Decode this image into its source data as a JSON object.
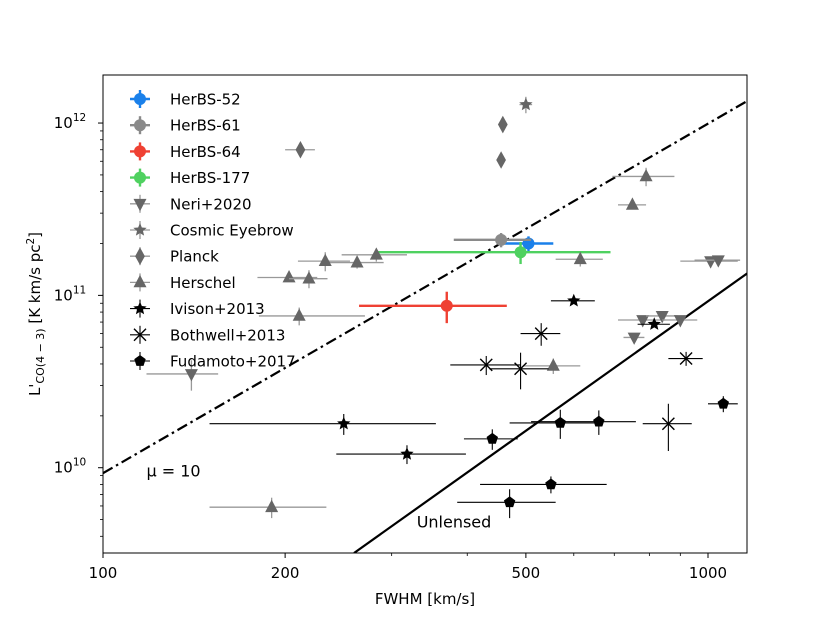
{
  "chart_data": {
    "type": "scatter",
    "xlabel": "FWHM [km/s]",
    "ylabel_main": "L'",
    "ylabel_sub": "CO(4 − 3)",
    "ylabel_unit": " [K km/s pc",
    "ylabel_unit_sup": "2",
    "ylabel_unit_end": "]",
    "x_scale": "log",
    "y_scale": "log",
    "xlim": [
      100,
      1160
    ],
    "ylim": [
      3200000000.0,
      1900000000000.0
    ],
    "x_ticks": [
      {
        "value": 100,
        "label": "100"
      },
      {
        "value": 200,
        "label": "200"
      },
      {
        "value": 500,
        "label": "500"
      },
      {
        "value": 1000,
        "label": "1000"
      }
    ],
    "y_ticks": [
      {
        "value": 10000000000.0,
        "base": "10",
        "exp": "10"
      },
      {
        "value": 100000000000.0,
        "base": "10",
        "exp": "11"
      },
      {
        "value": 1000000000000.0,
        "base": "10",
        "exp": "12"
      }
    ],
    "grid": false,
    "legend_position": "upper-left",
    "lines": [
      {
        "name": "μ = 10",
        "style": "dashdot",
        "color": "#000000",
        "x": [
          100,
          1160
        ],
        "y": [
          9300000000.0,
          1340000000000.0
        ]
      },
      {
        "name": "Unlensed",
        "style": "solid",
        "color": "#000000",
        "x": [
          260,
          1160
        ],
        "y": [
          3200000000.0,
          134000000000.0
        ]
      }
    ],
    "annotations": [
      {
        "text": "μ = 10",
        "x": 118,
        "y": 8900000000.0
      },
      {
        "text": "Unlensed",
        "x": 330,
        "y": 4500000000.0
      }
    ],
    "series": [
      {
        "name": "HerBS-52",
        "marker": "circle",
        "color": "#1a80ea",
        "size": 6,
        "ecolor": "#1a80ea",
        "ewidth": 2.4,
        "points": [
          {
            "x": 505,
            "y": 200000000000.0,
            "xerr": [
              50,
              50
            ],
            "yerr": [
              20000000000.0,
              20000000000.0
            ]
          }
        ]
      },
      {
        "name": "HerBS-61",
        "marker": "circle",
        "color": "#8a8a8a",
        "size": 6,
        "ecolor": "#8a8a8a",
        "ewidth": 2.4,
        "points": [
          {
            "x": 455,
            "y": 210000000000.0,
            "xerr": [
              75,
              55
            ],
            "yerr": [
              20000000000.0,
              20000000000.0
            ]
          }
        ]
      },
      {
        "name": "HerBS-64",
        "marker": "circle",
        "color": "#ef4133",
        "size": 6,
        "ecolor": "#ef4133",
        "ewidth": 2.4,
        "points": [
          {
            "x": 370,
            "y": 87000000000.0,
            "xerr": [
              105,
              95
            ],
            "yerr": [
              18000000000.0,
              18000000000.0
            ]
          }
        ]
      },
      {
        "name": "HerBS-177",
        "marker": "circle",
        "color": "#4fd160",
        "size": 6,
        "ecolor": "#4fd160",
        "ewidth": 2.4,
        "points": [
          {
            "x": 490,
            "y": 178000000000.0,
            "xerr": [
              205,
              200
            ],
            "yerr": [
              26000000000.0,
              26000000000.0
            ]
          }
        ]
      },
      {
        "name": "Neri+2020",
        "marker": "triangle-down",
        "color": "#666666",
        "size": 6.5,
        "ecolor": "#999999",
        "ewidth": 1.3,
        "points": [
          {
            "x": 1010,
            "y": 158000000000.0,
            "xerr": [
              110,
              110
            ],
            "yerr": [
              0,
              0
            ]
          },
          {
            "x": 1040,
            "y": 160000000000.0,
            "xerr": [
              90,
              90
            ],
            "yerr": [
              0,
              0
            ]
          },
          {
            "x": 780,
            "y": 72000000000.0,
            "xerr": [
              70,
              70
            ],
            "yerr": [
              0,
              0
            ]
          },
          {
            "x": 840,
            "y": 76000000000.0,
            "xerr": [
              50,
              50
            ],
            "yerr": [
              0,
              0
            ]
          },
          {
            "x": 900,
            "y": 72000000000.0,
            "xerr": [
              60,
              60
            ],
            "yerr": [
              0,
              0
            ]
          },
          {
            "x": 755,
            "y": 57000000000.0,
            "xerr": [
              30,
              30
            ],
            "yerr": [
              0,
              0
            ]
          },
          {
            "x": 140,
            "y": 35000000000.0,
            "xerr": [
              22,
              15
            ],
            "yerr": [
              7000000000.0,
              7000000000.0
            ]
          }
        ]
      },
      {
        "name": "Cosmic Eyebrow",
        "marker": "star-gray",
        "color": "#666666",
        "size": 7,
        "ecolor": "#999999",
        "ewidth": 1.3,
        "points": [
          {
            "x": 500,
            "y": 1280000000000.0,
            "xerr": [
              12,
              12
            ],
            "yerr": [
              140000000000.0,
              140000000000.0
            ]
          }
        ]
      },
      {
        "name": "Planck",
        "marker": "diamond",
        "color": "#666666",
        "size": 6.5,
        "ecolor": "#999999",
        "ewidth": 1.3,
        "points": [
          {
            "x": 212,
            "y": 700000000000.0,
            "xerr": [
              12,
              12
            ],
            "yerr": [
              0,
              0
            ]
          },
          {
            "x": 458,
            "y": 980000000000.0,
            "xerr": [
              6,
              6
            ],
            "yerr": [
              0,
              0
            ]
          },
          {
            "x": 455,
            "y": 610000000000.0,
            "xerr": [
              6,
              6
            ],
            "yerr": [
              0,
              0
            ]
          }
        ]
      },
      {
        "name": "Herschel",
        "marker": "triangle-up",
        "color": "#666666",
        "size": 6.5,
        "ecolor": "#999999",
        "ewidth": 1.3,
        "points": [
          {
            "x": 790,
            "y": 490000000000.0,
            "xerr": [
              95,
              90
            ],
            "yerr": [
              60000000000.0,
              60000000000.0
            ]
          },
          {
            "x": 750,
            "y": 335000000000.0,
            "xerr": [
              40,
              40
            ],
            "yerr": [
              0,
              0
            ]
          },
          {
            "x": 615,
            "y": 162000000000.0,
            "xerr": [
              55,
              55
            ],
            "yerr": [
              15000000000.0,
              15000000000.0
            ]
          },
          {
            "x": 283,
            "y": 172000000000.0,
            "xerr": [
              35,
              35
            ],
            "yerr": [
              15000000000.0,
              15000000000.0
            ]
          },
          {
            "x": 263,
            "y": 155000000000.0,
            "xerr": [
              28,
              28
            ],
            "yerr": [
              12000000000.0,
              12000000000.0
            ]
          },
          {
            "x": 233,
            "y": 158000000000.0,
            "xerr": [
              23,
              23
            ],
            "yerr": [
              20000000000.0,
              20000000000.0
            ]
          },
          {
            "x": 203,
            "y": 127000000000.0,
            "xerr": [
              23,
              23
            ],
            "yerr": [
              0,
              0
            ]
          },
          {
            "x": 219,
            "y": 125000000000.0,
            "xerr": [
              16,
              16
            ],
            "yerr": [
              15000000000.0,
              15000000000.0
            ]
          },
          {
            "x": 211,
            "y": 76000000000.0,
            "xerr": [
              30,
              60
            ],
            "yerr": [
              9000000000.0,
              9000000000.0
            ]
          },
          {
            "x": 555,
            "y": 39000000000.0,
            "xerr": [
              60,
              60
            ],
            "yerr": [
              4000000000.0,
              4000000000.0
            ]
          },
          {
            "x": 190,
            "y": 5900000000.0,
            "xerr": [
              40,
              44
            ],
            "yerr": [
              800000000.0,
              800000000.0
            ]
          }
        ]
      },
      {
        "name": "Ivison+2013",
        "marker": "star-black",
        "color": "#000000",
        "size": 7,
        "ecolor": "#000000",
        "ewidth": 1.1,
        "points": [
          {
            "x": 600,
            "y": 93000000000.0,
            "xerr": [
              50,
              50
            ],
            "yerr": [
              0,
              0
            ]
          },
          {
            "x": 815,
            "y": 68000000000.0,
            "xerr": [
              50,
              50
            ],
            "yerr": [
              0,
              0
            ]
          },
          {
            "x": 250,
            "y": 18000000000.0,
            "xerr": [
              100,
              105
            ],
            "yerr": [
              2500000000.0,
              2500000000.0
            ]
          },
          {
            "x": 318,
            "y": 12000000000.0,
            "xerr": [
              75,
              80
            ],
            "yerr": [
              1500000000.0,
              1500000000.0
            ]
          }
        ]
      },
      {
        "name": "Bothwell+2013",
        "marker": "x",
        "color": "#000000",
        "size": 6,
        "ecolor": "#000000",
        "ewidth": 1.1,
        "points": [
          {
            "x": 530,
            "y": 60000000000.0,
            "xerr": [
              40,
              40
            ],
            "yerr": [
              9000000000.0,
              9000000000.0
            ]
          },
          {
            "x": 430,
            "y": 39500000000.0,
            "xerr": [
              55,
              60
            ],
            "yerr": [
              5000000000.0,
              5000000000.0
            ]
          },
          {
            "x": 490,
            "y": 37500000000.0,
            "xerr": [
              55,
              55
            ],
            "yerr": [
              9000000000.0,
              9000000000.0
            ]
          },
          {
            "x": 920,
            "y": 43000000000.0,
            "xerr": [
              60,
              60
            ],
            "yerr": [
              4000000000.0,
              4000000000.0
            ]
          },
          {
            "x": 860,
            "y": 18000000000.0,
            "xerr": [
              80,
              80
            ],
            "yerr": [
              5500000000.0,
              5500000000.0
            ]
          }
        ]
      },
      {
        "name": "Fudamoto+2017",
        "marker": "pentagon",
        "color": "#000000",
        "size": 6,
        "ecolor": "#000000",
        "ewidth": 1.1,
        "points": [
          {
            "x": 570,
            "y": 18200000000.0,
            "xerr": [
              100,
              100
            ],
            "yerr": [
              3500000000.0,
              3500000000.0
            ]
          },
          {
            "x": 660,
            "y": 18500000000.0,
            "xerr": [
              150,
              100
            ],
            "yerr": [
              3000000000.0,
              3000000000.0
            ]
          },
          {
            "x": 440,
            "y": 14700000000.0,
            "xerr": [
              45,
              45
            ],
            "yerr": [
              2000000000.0,
              2000000000.0
            ]
          },
          {
            "x": 1060,
            "y": 23500000000.0,
            "xerr": [
              60,
              60
            ],
            "yerr": [
              2500000000.0,
              2500000000.0
            ]
          },
          {
            "x": 550,
            "y": 8000000000.0,
            "xerr": [
              130,
              130
            ],
            "yerr": [
              900000000.0,
              900000000.0
            ]
          },
          {
            "x": 470,
            "y": 6300000000.0,
            "xerr": [
              85,
              90
            ],
            "yerr": [
              1200000000.0,
              1200000000.0
            ]
          }
        ]
      }
    ]
  }
}
